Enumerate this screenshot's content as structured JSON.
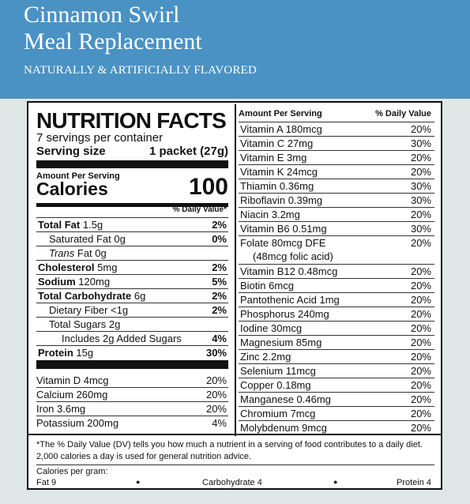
{
  "header": {
    "title_line1": "Cinnamon Swirl",
    "title_line2": "Meal Replacement",
    "tagline": "NATURALLY & ARTIFICIALLY FLAVORED",
    "bg_color": "#4a92c4"
  },
  "nutrition": {
    "title": "NUTRITION FACTS",
    "servings": "7 servings per container",
    "serving_size_label": "Serving size",
    "serving_size_value": "1 packet (27g)",
    "amount_per_serving": "Amount Per Serving",
    "calories_label": "Calories",
    "calories_value": "100",
    "dv_header": "% Daily Value*",
    "rows": [
      {
        "label": "Total Fat",
        "amount": "1.5g",
        "pct": "2%"
      },
      {
        "label": "Saturated Fat",
        "amount": "0g",
        "pct": "0%"
      },
      {
        "label": "Trans",
        "amount": "Fat 0g",
        "pct": ""
      },
      {
        "label": "Cholesterol",
        "amount": "5mg",
        "pct": "2%"
      },
      {
        "label": "Sodium",
        "amount": "120mg",
        "pct": "5%"
      },
      {
        "label": "Total Carbohydrate",
        "amount": "6g",
        "pct": "2%"
      },
      {
        "label": "Dietary Fiber",
        "amount": "<1g",
        "pct": "2%"
      },
      {
        "label": "Total Sugars",
        "amount": "2g",
        "pct": ""
      },
      {
        "label": "Includes 2g Added Sugars",
        "amount": "",
        "pct": "4%"
      },
      {
        "label": "Protein",
        "amount": "15g",
        "pct": "30%"
      }
    ],
    "minerals": [
      {
        "label": "Vitamin D 4mcg",
        "pct": "20%"
      },
      {
        "label": "Calcium 260mg",
        "pct": "20%"
      },
      {
        "label": "Iron 3.6mg",
        "pct": "20%"
      },
      {
        "label": "Potassium 200mg",
        "pct": "4%"
      }
    ]
  },
  "right": {
    "head_left": "Amount Per Serving",
    "head_right": "% Daily Value",
    "rows": [
      {
        "label": "Vitamin A  180mcg",
        "pct": "20%"
      },
      {
        "label": "Vitamin C  27mg",
        "pct": "30%"
      },
      {
        "label": "Vitamin E  3mg",
        "pct": "20%"
      },
      {
        "label": "Vitamin K  24mcg",
        "pct": "20%"
      },
      {
        "label": "Thiamin  0.36mg",
        "pct": "30%"
      },
      {
        "label": "Riboflavin  0.39mg",
        "pct": "30%"
      },
      {
        "label": "Niacin  3.2mg",
        "pct": "20%"
      },
      {
        "label": "Vitamin B6  0.51mg",
        "pct": "30%"
      },
      {
        "label": "Folate  80mcg DFE",
        "label2": "(48mcg folic acid)",
        "pct": "20%"
      },
      {
        "label": "Vitamin B12  0.48mcg",
        "pct": "20%"
      },
      {
        "label": "Biotin  6mcg",
        "pct": "20%"
      },
      {
        "label": "Pantothenic Acid  1mg",
        "pct": "20%"
      },
      {
        "label": "Phosphorus  240mg",
        "pct": "20%"
      },
      {
        "label": "Iodine  30mcg",
        "pct": "20%"
      },
      {
        "label": "Magnesium  85mg",
        "pct": "20%"
      },
      {
        "label": "Zinc  2.2mg",
        "pct": "20%"
      },
      {
        "label": "Selenium  11mcg",
        "pct": "20%"
      },
      {
        "label": "Copper  0.18mg",
        "pct": "20%"
      },
      {
        "label": "Manganese  0.46mg",
        "pct": "20%"
      },
      {
        "label": "Chromium  7mcg",
        "pct": "20%"
      },
      {
        "label": "Molybdenum  9mcg",
        "pct": "20%"
      }
    ]
  },
  "footer": {
    "footnote": "*The % Daily Value (DV) tells you how much a nutrient in a serving of food contributes to a daily diet. 2,000 calories a day is used for general nutrition advice.",
    "cpg_label": "Calories per gram:",
    "fat": "Fat 9",
    "carb": "Carbohydrate 4",
    "protein": "Protein 4",
    "separator": "●"
  }
}
